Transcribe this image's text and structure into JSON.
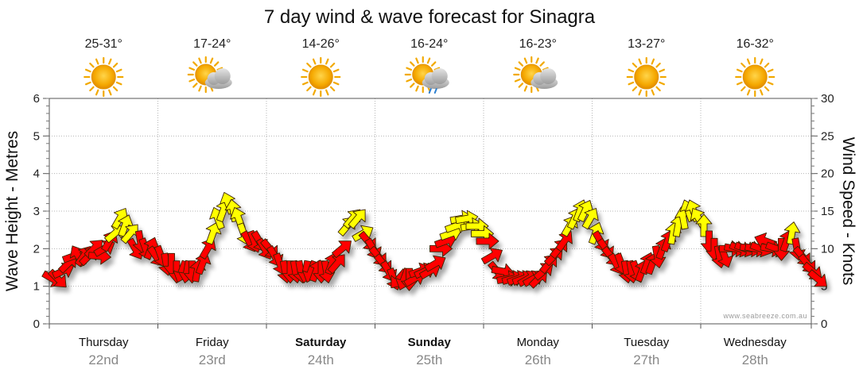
{
  "chart_data": {
    "type": "line",
    "title": "7 day wind & wave forecast for Sinagra",
    "ylabel_left": "Wave Height - Metres",
    "ylabel_right": "Wind Speed - Knots",
    "ylim_left": [
      0,
      6
    ],
    "ylim_right": [
      0,
      30
    ],
    "yticks_left": [
      "0",
      "1",
      "2",
      "3",
      "4",
      "5",
      "6"
    ],
    "yticks_right": [
      "0",
      "5",
      "10",
      "15",
      "20",
      "25",
      "30"
    ],
    "credit": "www.seabreeze.com.au",
    "days": [
      {
        "day": "Thursday",
        "date": "22nd",
        "temp": "25-31°",
        "weather": "sunny",
        "bold": false
      },
      {
        "day": "Friday",
        "date": "23rd",
        "temp": "17-24°",
        "weather": "partly-cloudy",
        "bold": false
      },
      {
        "day": "Saturday",
        "date": "24th",
        "temp": "14-26°",
        "weather": "sunny",
        "bold": true
      },
      {
        "day": "Sunday",
        "date": "25th",
        "temp": "16-24°",
        "weather": "showers",
        "bold": true
      },
      {
        "day": "Monday",
        "date": "26th",
        "temp": "16-23°",
        "weather": "partly-cloudy",
        "bold": false
      },
      {
        "day": "Tuesday",
        "date": "27th",
        "temp": "13-27°",
        "weather": "sunny",
        "bold": false
      },
      {
        "day": "Wednesday",
        "date": "28th",
        "temp": "16-32°",
        "weather": "sunny",
        "bold": false
      }
    ],
    "series": [
      {
        "name": "wind",
        "note": "hourly wind speed in knots; direction = compass degrees the arrow points toward",
        "points": [
          [
            0.0,
            6,
            120
          ],
          [
            0.06,
            6,
            135
          ],
          [
            0.12,
            7,
            65
          ],
          [
            0.18,
            8,
            45
          ],
          [
            0.24,
            9,
            70
          ],
          [
            0.3,
            9,
            330
          ],
          [
            0.36,
            9,
            35
          ],
          [
            0.42,
            9,
            45
          ],
          [
            0.48,
            10,
            45
          ],
          [
            0.54,
            9,
            95
          ],
          [
            0.6,
            10,
            60
          ],
          [
            0.66,
            11,
            30
          ],
          [
            0.72,
            12,
            50
          ],
          [
            0.78,
            14,
            30
          ],
          [
            0.84,
            13,
            20
          ],
          [
            0.9,
            12,
            40
          ],
          [
            0.96,
            10,
            150
          ],
          [
            1.02,
            11,
            170
          ],
          [
            1.08,
            10,
            160
          ],
          [
            1.14,
            10,
            20
          ],
          [
            1.2,
            9,
            145
          ],
          [
            1.26,
            9,
            160
          ],
          [
            1.32,
            8,
            170
          ],
          [
            1.38,
            8,
            180
          ],
          [
            1.44,
            7,
            180
          ],
          [
            1.5,
            7,
            200
          ],
          [
            1.56,
            7,
            190
          ],
          [
            1.62,
            7,
            180
          ],
          [
            1.68,
            7,
            10
          ],
          [
            1.74,
            8,
            20
          ],
          [
            1.8,
            10,
            30
          ],
          [
            1.86,
            12,
            20
          ],
          [
            1.92,
            14,
            340
          ],
          [
            1.98,
            15,
            20
          ],
          [
            2.04,
            16,
            340
          ],
          [
            2.1,
            15,
            350
          ],
          [
            2.16,
            14,
            340
          ],
          [
            2.22,
            12,
            160
          ],
          [
            2.28,
            11,
            150
          ],
          [
            2.34,
            11,
            160
          ],
          [
            2.4,
            11,
            150
          ],
          [
            2.46,
            10,
            150
          ],
          [
            2.52,
            10,
            140
          ],
          [
            2.58,
            9,
            150
          ],
          [
            2.64,
            8,
            160
          ],
          [
            2.7,
            7,
            170
          ],
          [
            2.76,
            7,
            180
          ],
          [
            2.82,
            7,
            170
          ],
          [
            2.88,
            7,
            170
          ],
          [
            2.94,
            7,
            190
          ],
          [
            3.0,
            7,
            200
          ],
          [
            3.06,
            7,
            20
          ],
          [
            3.12,
            7,
            180
          ],
          [
            3.18,
            7,
            170
          ],
          [
            3.24,
            8,
            20
          ],
          [
            3.3,
            8,
            40
          ],
          [
            3.36,
            10,
            50
          ],
          [
            3.42,
            13,
            40
          ],
          [
            3.48,
            14,
            40
          ],
          [
            3.54,
            14,
            40
          ],
          [
            3.6,
            12,
            60
          ],
          [
            3.66,
            11,
            140
          ],
          [
            3.72,
            10,
            150
          ],
          [
            3.78,
            9,
            140
          ],
          [
            3.84,
            8,
            140
          ],
          [
            3.9,
            7,
            150
          ],
          [
            3.96,
            6,
            160
          ],
          [
            4.02,
            6,
            220
          ],
          [
            4.08,
            6,
            200
          ],
          [
            4.14,
            6,
            180
          ],
          [
            4.2,
            6,
            60
          ],
          [
            4.26,
            7,
            70
          ],
          [
            4.32,
            7,
            65
          ],
          [
            4.38,
            7,
            60
          ],
          [
            4.44,
            8,
            60
          ],
          [
            4.5,
            10,
            90
          ],
          [
            4.56,
            11,
            70
          ],
          [
            4.62,
            12,
            70
          ],
          [
            4.68,
            13,
            70
          ],
          [
            4.74,
            14,
            80
          ],
          [
            4.8,
            14,
            80
          ],
          [
            4.86,
            13,
            80
          ],
          [
            4.92,
            13,
            90
          ],
          [
            4.98,
            12,
            90
          ],
          [
            5.04,
            11,
            90
          ],
          [
            5.1,
            9,
            60
          ],
          [
            5.16,
            7,
            140
          ],
          [
            5.22,
            7,
            100
          ],
          [
            5.28,
            6,
            80
          ],
          [
            5.34,
            6,
            75
          ],
          [
            5.4,
            6,
            70
          ],
          [
            5.46,
            6,
            70
          ],
          [
            5.52,
            6,
            60
          ],
          [
            5.58,
            6,
            60
          ],
          [
            5.64,
            6,
            45
          ],
          [
            5.7,
            7,
            50
          ],
          [
            5.76,
            8,
            40
          ],
          [
            5.82,
            9,
            45
          ],
          [
            5.88,
            10,
            40
          ],
          [
            5.94,
            11,
            35
          ],
          [
            6.0,
            13,
            30
          ],
          [
            6.06,
            14,
            25
          ],
          [
            6.12,
            15,
            20
          ],
          [
            6.18,
            15,
            25
          ],
          [
            6.24,
            14,
            30
          ],
          [
            6.3,
            12,
            20
          ],
          [
            6.36,
            11,
            150
          ],
          [
            6.42,
            10,
            145
          ],
          [
            6.48,
            9,
            140
          ],
          [
            6.54,
            8,
            150
          ],
          [
            6.6,
            8,
            160
          ],
          [
            6.66,
            7,
            170
          ],
          [
            6.72,
            7,
            170
          ],
          [
            6.78,
            7,
            160
          ],
          [
            6.84,
            7,
            20
          ],
          [
            6.9,
            8,
            20
          ],
          [
            6.96,
            8,
            20
          ],
          [
            7.02,
            9,
            170
          ],
          [
            7.08,
            10,
            20
          ],
          [
            7.14,
            11,
            20
          ],
          [
            7.2,
            12,
            10
          ],
          [
            7.26,
            13,
            10
          ],
          [
            7.32,
            14,
            350
          ],
          [
            7.38,
            15,
            340
          ],
          [
            7.44,
            15,
            340
          ],
          [
            7.5,
            14,
            330
          ],
          [
            7.56,
            13,
            0
          ],
          [
            7.62,
            11,
            180
          ],
          [
            7.68,
            10,
            180
          ],
          [
            7.74,
            9,
            170
          ],
          [
            7.8,
            9,
            160
          ],
          [
            7.86,
            10,
            90
          ],
          [
            7.92,
            10,
            100
          ],
          [
            7.98,
            10,
            110
          ],
          [
            8.04,
            10,
            110
          ],
          [
            8.1,
            10,
            100
          ],
          [
            8.16,
            10,
            100
          ],
          [
            8.22,
            10,
            110
          ],
          [
            8.28,
            11,
            290
          ],
          [
            8.34,
            10,
            100
          ],
          [
            8.4,
            10,
            110
          ],
          [
            8.46,
            10,
            180
          ],
          [
            8.52,
            11,
            20
          ],
          [
            8.58,
            12,
            10
          ],
          [
            8.64,
            10,
            170
          ],
          [
            8.7,
            9,
            140
          ],
          [
            8.76,
            8,
            140
          ],
          [
            8.82,
            7,
            130
          ],
          [
            8.88,
            6,
            130
          ]
        ]
      }
    ]
  }
}
